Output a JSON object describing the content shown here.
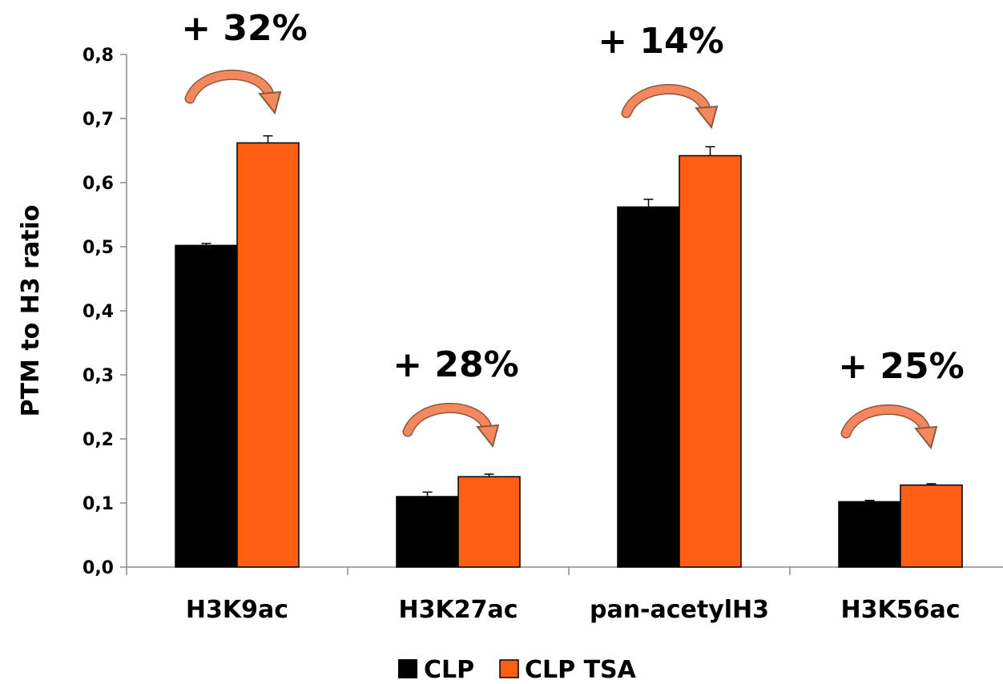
{
  "chart_data": {
    "type": "bar",
    "title": "",
    "xlabel": "",
    "ylabel": "PTM to H3 ratio",
    "ylim": [
      0,
      0.8
    ],
    "yticks": [
      "0,0",
      "0,1",
      "0,2",
      "0,3",
      "0,4",
      "0,5",
      "0,6",
      "0,7",
      "0,8"
    ],
    "categories": [
      "H3K9ac",
      "H3K27ac",
      "pan-acetylH3",
      "H3K56ac"
    ],
    "series": [
      {
        "name": "CLP",
        "color": "#000000",
        "values": [
          0.502,
          0.11,
          0.562,
          0.102
        ],
        "errors": [
          0.003,
          0.007,
          0.012,
          0.002
        ]
      },
      {
        "name": "CLP TSA",
        "color": "#ff5e14",
        "values": [
          0.662,
          0.141,
          0.642,
          0.128
        ],
        "errors": [
          0.011,
          0.004,
          0.014,
          0.002
        ]
      }
    ],
    "annotations": [
      "+ 32%",
      "+ 28%",
      "+ 14%",
      "+ 25%"
    ],
    "arrow_color": "#f4875e",
    "legend_position": "bottom",
    "grid": false
  }
}
